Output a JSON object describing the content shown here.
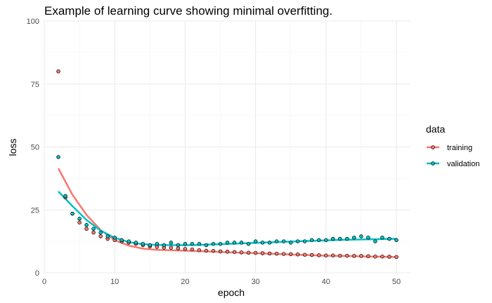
{
  "chart_data": {
    "type": "scatter",
    "title": "Example of learning curve showing minimal overfitting.",
    "xlabel": "epoch",
    "ylabel": "loss",
    "xlim": [
      0,
      52
    ],
    "ylim": [
      0,
      100
    ],
    "xticks": [
      0,
      10,
      20,
      30,
      40,
      50
    ],
    "yticks": [
      0,
      25,
      50,
      75,
      100
    ],
    "grid": true,
    "legend": {
      "title": "data",
      "placement": "right"
    },
    "series": [
      {
        "name": "training",
        "color": "#F8766D",
        "x": [
          2,
          3,
          4,
          5,
          6,
          7,
          8,
          9,
          10,
          11,
          12,
          13,
          14,
          15,
          16,
          17,
          18,
          19,
          20,
          21,
          22,
          23,
          24,
          25,
          26,
          27,
          28,
          29,
          30,
          31,
          32,
          33,
          34,
          35,
          36,
          37,
          38,
          39,
          40,
          41,
          42,
          43,
          44,
          45,
          46,
          47,
          48,
          49,
          50
        ],
        "y": [
          80,
          30,
          23.5,
          20,
          17.5,
          16,
          14.5,
          13.5,
          13,
          12.5,
          12,
          11.5,
          11,
          10.5,
          10.3,
          10,
          10,
          9.7,
          9.5,
          9.3,
          9,
          8.8,
          8.7,
          8.5,
          8.4,
          8.3,
          8.1,
          8,
          7.9,
          7.8,
          7.7,
          7.6,
          7.5,
          7.4,
          7.3,
          7.2,
          7.1,
          7.0,
          6.9,
          6.9,
          6.8,
          6.8,
          6.7,
          6.7,
          6.6,
          6.5,
          6.5,
          6.4,
          6.3
        ],
        "smooth": {
          "x": [
            2,
            4,
            6,
            8,
            10,
            12,
            14,
            16,
            18,
            20,
            22,
            24,
            26,
            28,
            30,
            32,
            34,
            36,
            38,
            40,
            42,
            44,
            46,
            48,
            50
          ],
          "y": [
            41.5,
            31,
            23,
            17,
            13,
            10.8,
            9.6,
            9.1,
            9.0,
            8.8,
            8.6,
            8.4,
            8.2,
            8.0,
            7.8,
            7.6,
            7.4,
            7.2,
            7.0,
            6.8,
            6.7,
            6.6,
            6.5,
            6.4,
            6.3
          ]
        }
      },
      {
        "name": "validation",
        "color": "#00BFC4",
        "x": [
          2,
          3,
          4,
          5,
          6,
          7,
          8,
          9,
          10,
          11,
          12,
          13,
          14,
          15,
          16,
          17,
          18,
          19,
          20,
          21,
          22,
          23,
          24,
          25,
          26,
          27,
          28,
          29,
          30,
          31,
          32,
          33,
          34,
          35,
          36,
          37,
          38,
          39,
          40,
          41,
          42,
          43,
          44,
          45,
          46,
          47,
          48,
          49,
          50
        ],
        "y": [
          46,
          30.5,
          23.5,
          21.5,
          19,
          17.5,
          16,
          14.5,
          14,
          13,
          12.5,
          12,
          11.5,
          11,
          11.5,
          11,
          12,
          11,
          11.5,
          11.5,
          11.5,
          11,
          11.5,
          11.5,
          12,
          12,
          12,
          11.5,
          12.5,
          12,
          12,
          12.5,
          12.5,
          12,
          12.5,
          12.5,
          13,
          13,
          13,
          13.5,
          13.5,
          13.5,
          14,
          14.5,
          14,
          12.5,
          14,
          13.5,
          13
        ],
        "smooth": {
          "x": [
            2,
            4,
            6,
            8,
            10,
            12,
            14,
            16,
            18,
            20,
            22,
            24,
            26,
            28,
            30,
            32,
            34,
            36,
            38,
            40,
            42,
            44,
            46,
            48,
            50
          ],
          "y": [
            32.3,
            26.5,
            21,
            16.8,
            13.9,
            12.2,
            11.4,
            11.1,
            11.0,
            11.0,
            11.1,
            11.3,
            11.5,
            11.7,
            11.9,
            12.1,
            12.3,
            12.5,
            12.7,
            12.9,
            13.1,
            13.2,
            13.3,
            13.4,
            13.5
          ]
        }
      }
    ]
  }
}
